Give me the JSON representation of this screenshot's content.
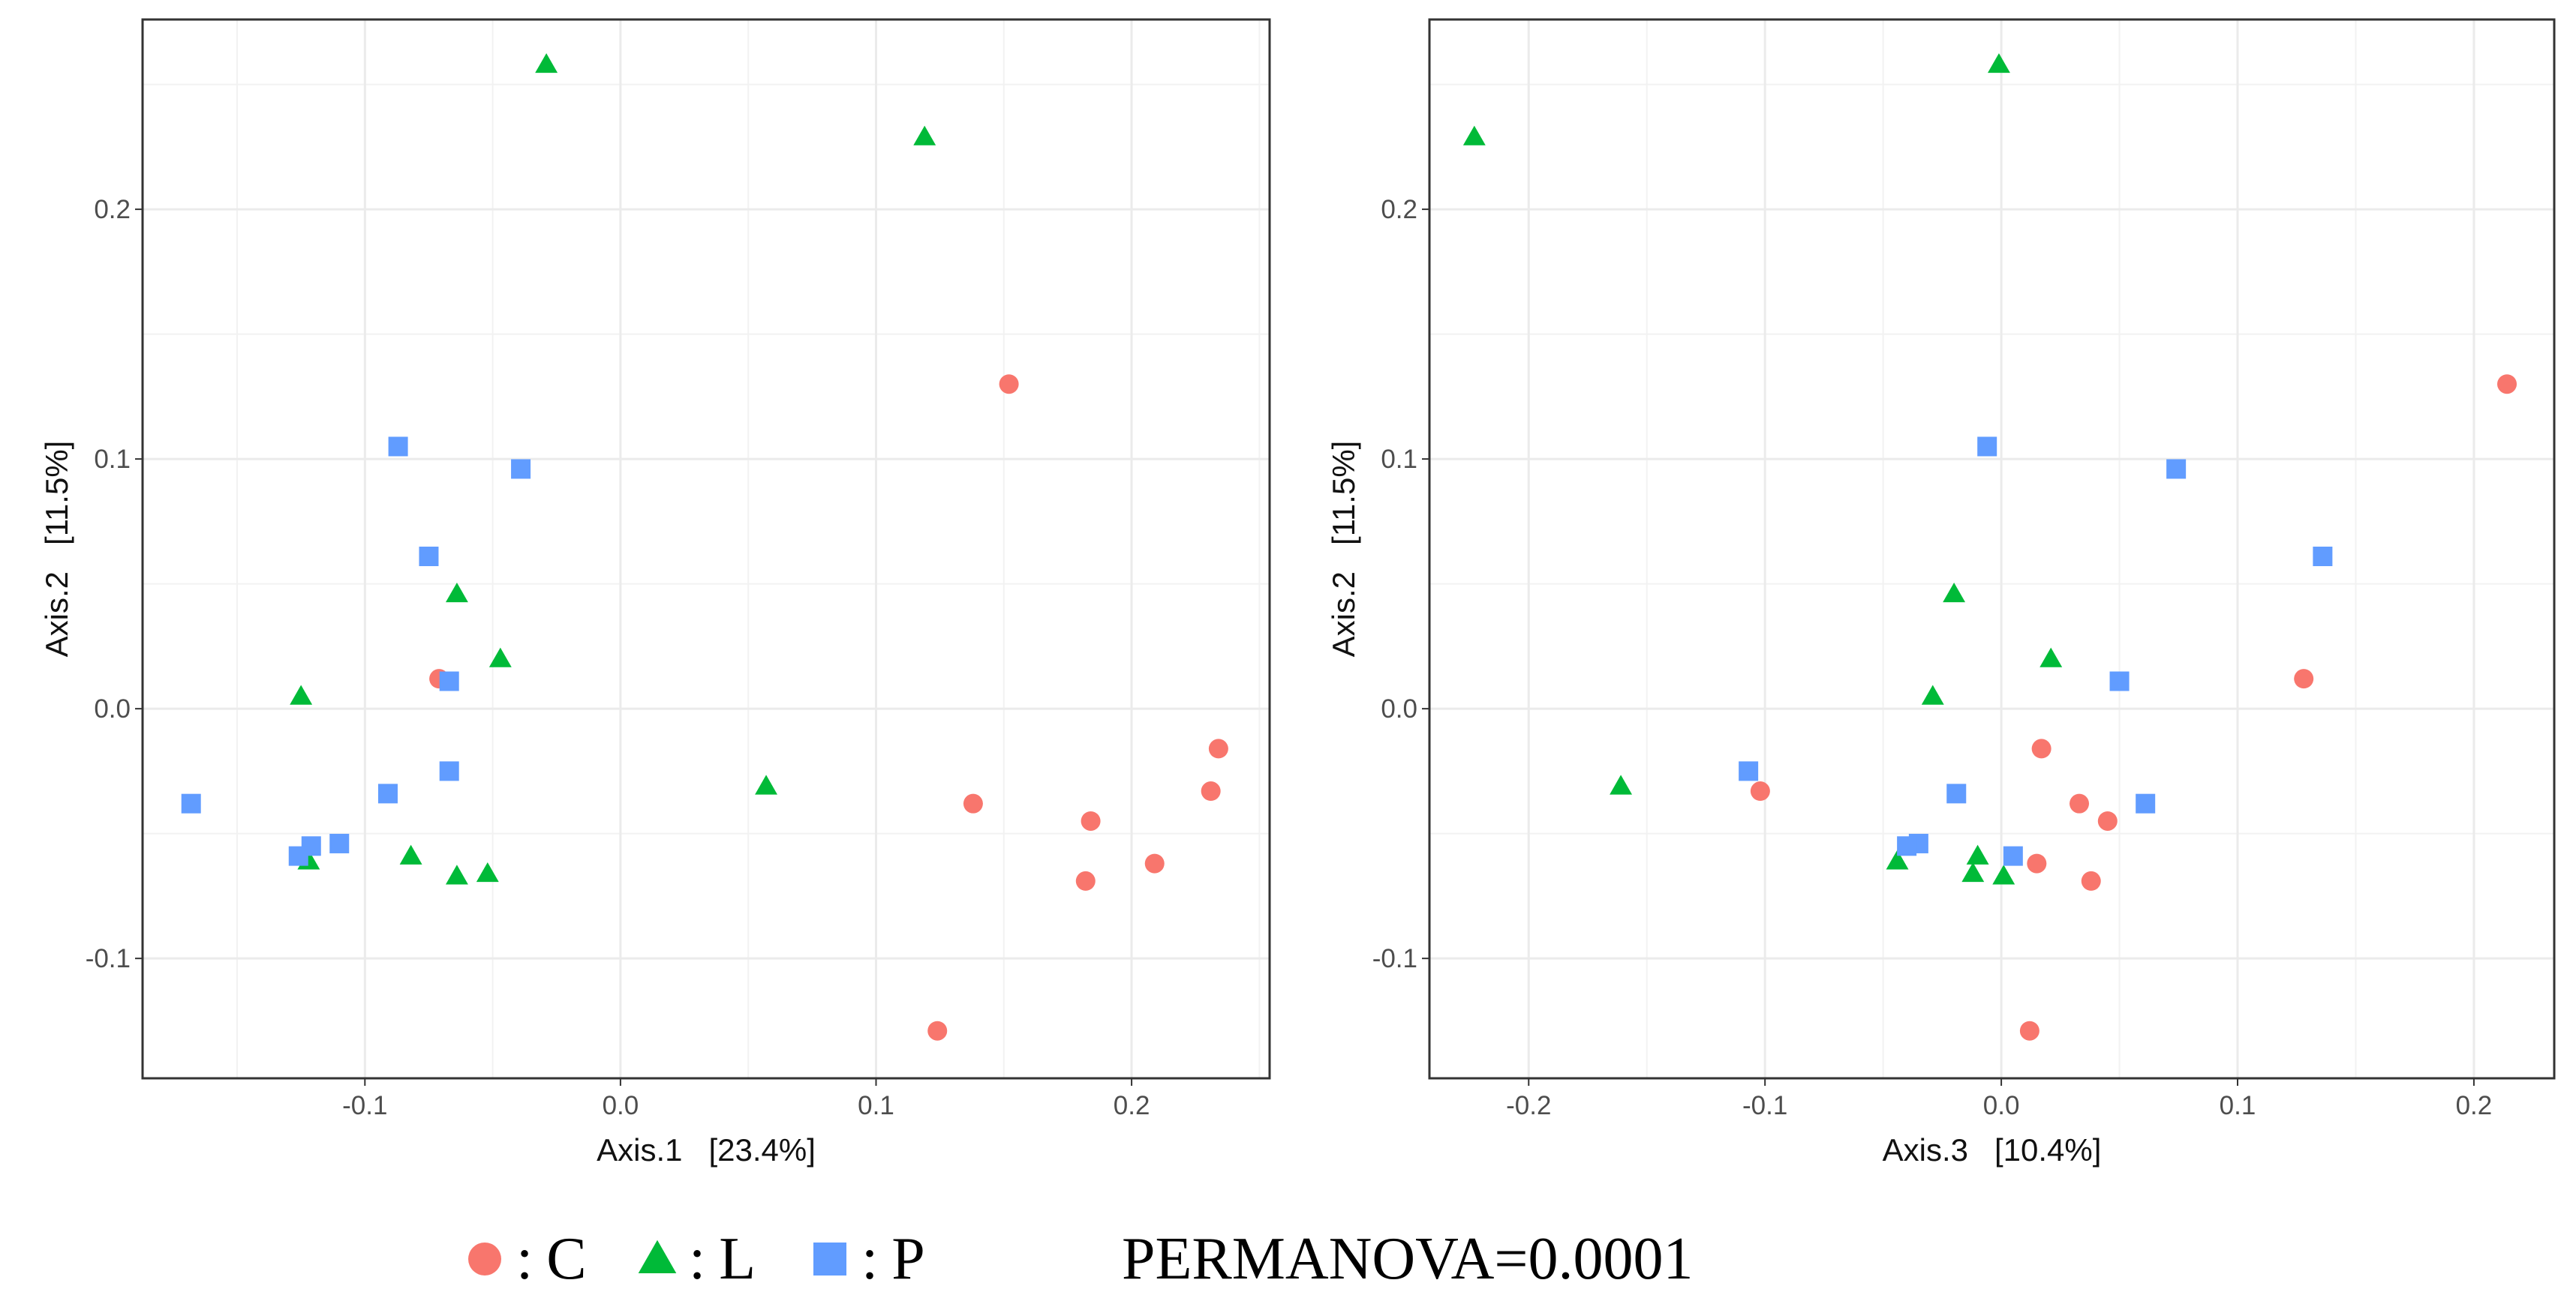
{
  "chart_data": [
    {
      "type": "scatter",
      "xlabel": "Axis.1   [23.4%]",
      "ylabel": "Axis.2   [11.5%]",
      "xlim": [
        -0.187,
        0.254
      ],
      "ylim": [
        -0.148,
        0.276
      ],
      "xticks": [
        -0.1,
        {
          "value": 0,
          "label": "0.0"
        },
        0.1,
        0.2
      ],
      "yticks": [
        -0.1,
        {
          "value": 0,
          "label": "0.0"
        },
        0.1,
        0.2
      ],
      "grid": true,
      "series": [
        {
          "name": "C",
          "color": "#F8766D",
          "marker": "circle",
          "x": [
            0.152,
            -0.071,
            0.234,
            0.138,
            0.231,
            0.184,
            0.209,
            0.182,
            0.124
          ],
          "values": [
            0.13,
            0.012,
            -0.016,
            -0.038,
            -0.033,
            -0.045,
            -0.062,
            -0.069,
            -0.129
          ]
        },
        {
          "name": "L",
          "color": "#00BA38",
          "marker": "triangle",
          "x": [
            -0.029,
            0.119,
            -0.064,
            -0.047,
            -0.125,
            0.057,
            -0.122,
            -0.082,
            -0.064,
            -0.052
          ],
          "values": [
            0.258,
            0.229,
            0.046,
            0.02,
            0.005,
            -0.031,
            -0.061,
            -0.059,
            -0.067,
            -0.066
          ]
        },
        {
          "name": "P",
          "color": "#619CFF",
          "marker": "square",
          "x": [
            -0.087,
            -0.039,
            -0.075,
            -0.067,
            -0.067,
            -0.091,
            -0.168,
            -0.11,
            -0.121,
            -0.126
          ],
          "values": [
            0.105,
            0.096,
            0.061,
            0.011,
            -0.025,
            -0.034,
            -0.038,
            -0.054,
            -0.055,
            -0.059
          ]
        }
      ]
    },
    {
      "type": "scatter",
      "xlabel": "Axis.3   [10.4%]",
      "ylabel": "Axis.2   [11.5%]",
      "xlim": [
        -0.242,
        0.234
      ],
      "ylim": [
        -0.148,
        0.276
      ],
      "xticks": [
        -0.2,
        -0.1,
        {
          "value": 0,
          "label": "0.0"
        },
        0.1,
        0.2
      ],
      "yticks": [
        -0.1,
        {
          "value": 0,
          "label": "0.0"
        },
        0.1,
        0.2
      ],
      "grid": true,
      "series": [
        {
          "name": "C",
          "color": "#F8766D",
          "marker": "circle",
          "x": [
            0.214,
            0.128,
            0.017,
            0.033,
            -0.102,
            0.045,
            0.015,
            0.038,
            0.012
          ],
          "values": [
            0.13,
            0.012,
            -0.016,
            -0.038,
            -0.033,
            -0.045,
            -0.062,
            -0.069,
            -0.129
          ]
        },
        {
          "name": "L",
          "color": "#00BA38",
          "marker": "triangle",
          "x": [
            -0.001,
            -0.223,
            -0.02,
            0.021,
            -0.029,
            -0.161,
            -0.044,
            -0.01,
            -0.012,
            0.001
          ],
          "values": [
            0.258,
            0.229,
            0.046,
            0.02,
            0.005,
            -0.031,
            -0.061,
            -0.059,
            -0.066,
            -0.067
          ]
        },
        {
          "name": "P",
          "color": "#619CFF",
          "marker": "square",
          "x": [
            -0.006,
            0.074,
            0.136,
            0.05,
            -0.107,
            -0.019,
            0.061,
            -0.035,
            -0.04,
            0.005
          ],
          "values": [
            0.105,
            0.096,
            0.061,
            0.011,
            -0.025,
            -0.034,
            -0.038,
            -0.054,
            -0.055,
            -0.059
          ]
        }
      ]
    }
  ],
  "legend": {
    "separator": ":"
  },
  "annotation": "PERMANOVA=0.0001"
}
